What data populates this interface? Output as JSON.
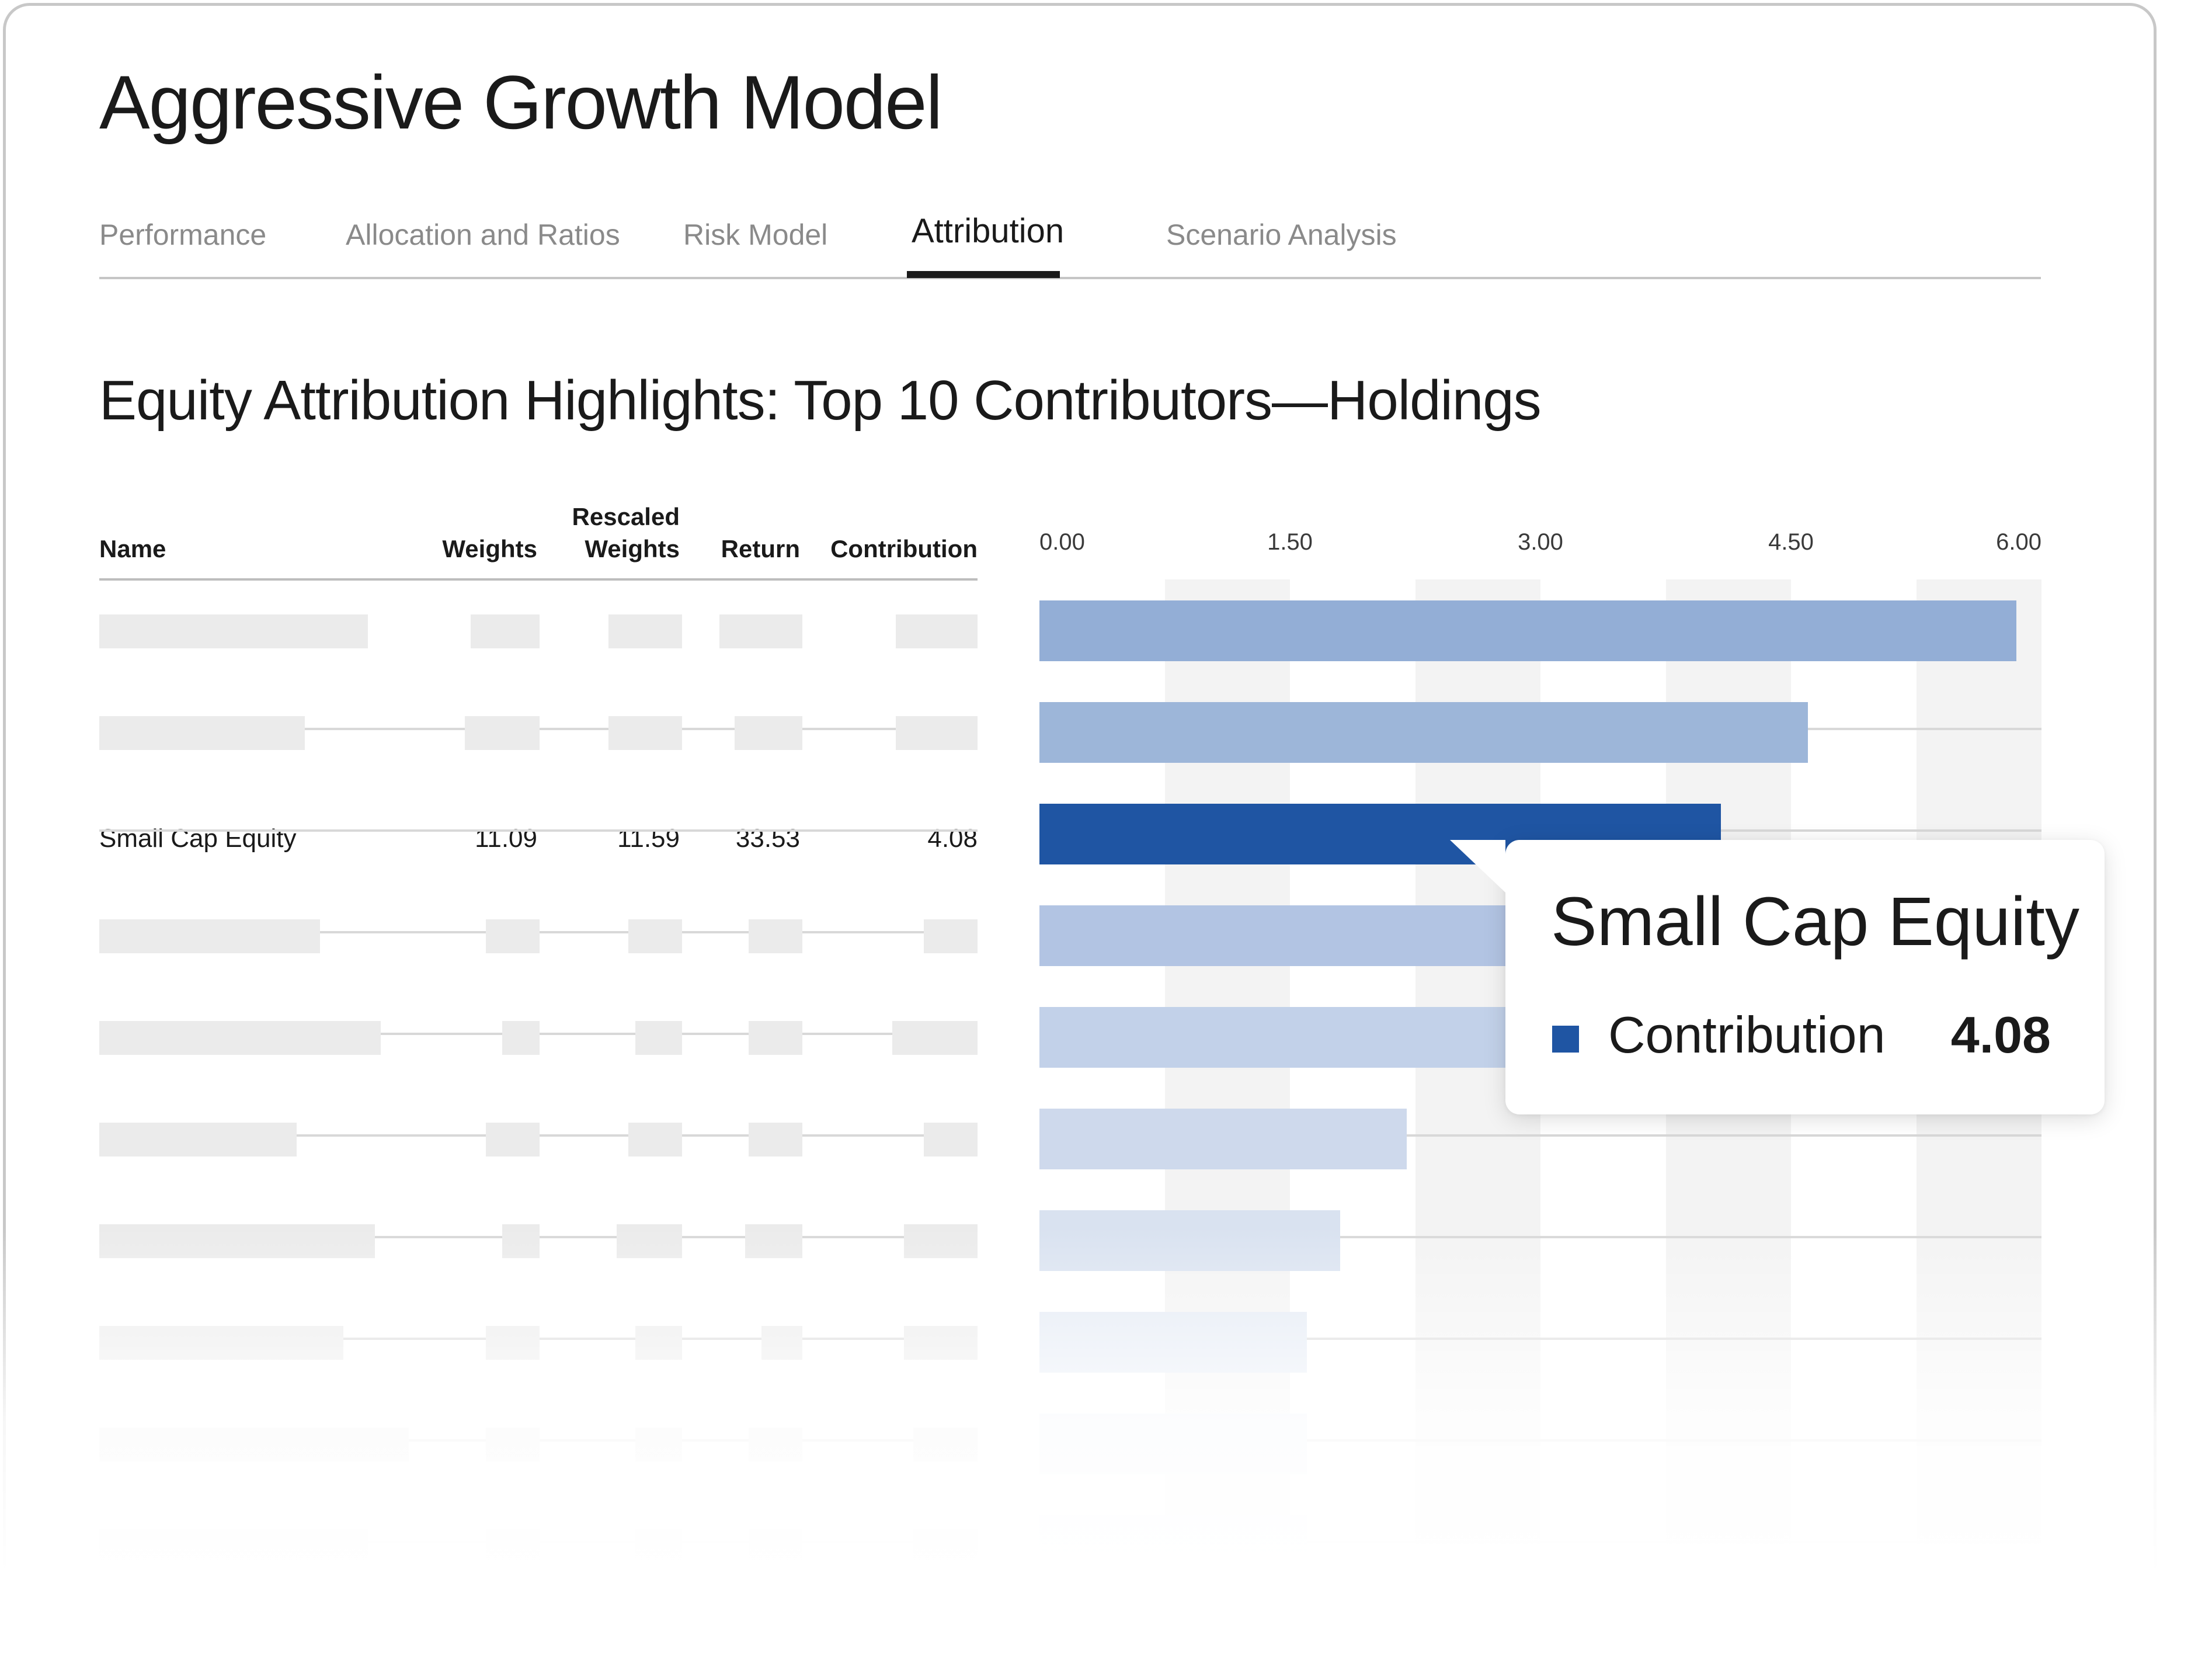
{
  "page": {
    "title": "Aggressive Growth Model",
    "tabs": [
      {
        "label": "Performance",
        "active": false
      },
      {
        "label": "Allocation and Ratios",
        "active": false
      },
      {
        "label": "Risk Model",
        "active": false
      },
      {
        "label": "Attribution",
        "active": true
      },
      {
        "label": "Scenario Analysis",
        "active": false
      }
    ],
    "section_title": "Equity Attribution Highlights: Top 10 Contributors—Holdings"
  },
  "table": {
    "headers": {
      "name": "Name",
      "weights": "Weights",
      "rescaled_line1": "Rescaled",
      "rescaled_line2": "Weights",
      "return": "Return",
      "contribution": "Contribution"
    },
    "highlighted_row": {
      "name": "Small Cap Equity",
      "weights": "11.09",
      "rescaled_weights": "11.59",
      "return": "33.53",
      "contribution": "4.08"
    }
  },
  "chart_data": {
    "type": "bar",
    "orientation": "horizontal",
    "title": "Equity Attribution Highlights: Top 10 Contributors—Holdings",
    "x_ticks": [
      "0.00",
      "1.50",
      "3.00",
      "4.50",
      "6.00"
    ],
    "xlim": [
      0,
      6
    ],
    "series": [
      {
        "name": "Contribution",
        "values": [
          5.85,
          4.6,
          4.08,
          3.2,
          2.95,
          2.2,
          1.8,
          1.6,
          1.6,
          1.6
        ]
      }
    ],
    "highlighted_index": 2,
    "colors": {
      "highlight": "#1f55a3",
      "bars": [
        "#93aed6",
        "#9db6d9",
        "#1f55a3",
        "#b2c4e3",
        "#c2d1e9",
        "#ced9ec",
        "#d9e2f0",
        "#e2e9f4",
        "#ebf0f7",
        "#f2f5fa"
      ]
    },
    "tooltip": {
      "title": "Small Cap Equity",
      "series_label": "Contribution",
      "value": "4.08"
    }
  }
}
